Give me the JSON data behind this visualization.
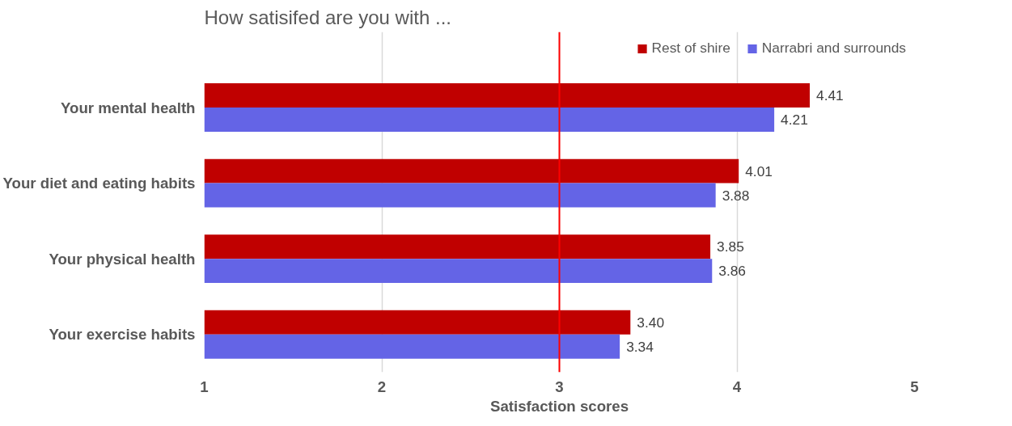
{
  "chart_data": {
    "type": "bar",
    "orientation": "horizontal",
    "title": "How satisifed are you with ...",
    "xlabel": "Satisfaction scores",
    "categories": [
      "Your mental health",
      "Your diet and eating habits",
      "Your physical health",
      "Your exercise habits"
    ],
    "series": [
      {
        "name": "Rest of shire",
        "color": "#c00000",
        "values": [
          4.41,
          4.01,
          3.85,
          3.4
        ],
        "value_labels": [
          "4.41",
          "4.01",
          "3.85",
          "3.40"
        ]
      },
      {
        "name": "Narrabri and surrounds",
        "color": "#6464e6",
        "values": [
          4.21,
          3.88,
          3.86,
          3.34
        ],
        "value_labels": [
          "4.21",
          "3.88",
          "3.86",
          "3.34"
        ]
      }
    ],
    "xlim": [
      1,
      5
    ],
    "xticks": [
      1,
      2,
      3,
      4,
      5
    ],
    "grid": "x",
    "legend": "top right",
    "ref_lines": [
      {
        "axis": "x",
        "value": 3,
        "color": "#ff0000"
      }
    ]
  }
}
